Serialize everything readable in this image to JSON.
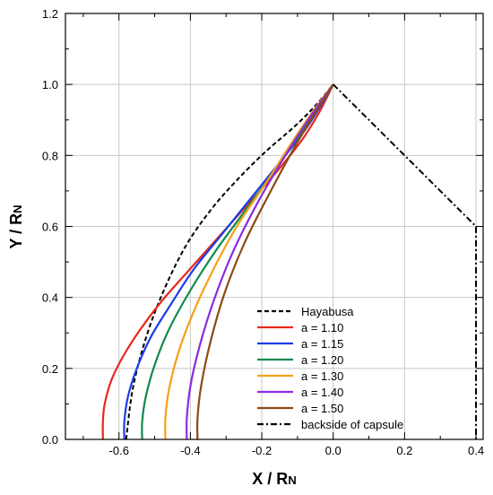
{
  "chart_data": {
    "type": "line",
    "title": "",
    "xlabel": {
      "main": "X / R",
      "sub": "N"
    },
    "ylabel": {
      "main": "Y / R",
      "sub": "N"
    },
    "xlim": [
      -0.75,
      0.42
    ],
    "ylim": [
      0.0,
      1.2
    ],
    "x_ticks": [
      -0.6,
      -0.4,
      -0.2,
      0.0,
      0.2,
      0.4
    ],
    "x_tick_labels": [
      "-0.6",
      "-0.4",
      "-0.2",
      "0.0",
      "0.2",
      "0.4"
    ],
    "y_ticks": [
      0.0,
      0.2,
      0.4,
      0.6,
      0.8,
      1.0,
      1.2
    ],
    "y_tick_labels": [
      "0.0",
      "0.2",
      "0.4",
      "0.6",
      "0.8",
      "1.0",
      "1.2"
    ],
    "grid": true,
    "legend_position": "bottom-right",
    "series": [
      {
        "name": "Hayabusa",
        "color": "#000000",
        "dash": "dashed",
        "x": [
          -0.58,
          -0.56,
          -0.52,
          -0.47,
          -0.41,
          -0.34,
          -0.27,
          -0.19,
          -0.11,
          -0.05,
          0.0
        ],
        "y": [
          0.0,
          0.15,
          0.3,
          0.43,
          0.55,
          0.65,
          0.73,
          0.81,
          0.88,
          0.94,
          1.0
        ]
      },
      {
        "name": "a = 1.10",
        "color": "#e8281e",
        "dash": "solid",
        "x": [
          -0.645,
          -0.645,
          -0.64,
          -0.62,
          -0.585,
          -0.54,
          -0.48,
          -0.41,
          -0.33,
          -0.25,
          -0.17,
          -0.09,
          -0.04,
          0.0
        ],
        "y": [
          0.0,
          0.05,
          0.1,
          0.17,
          0.24,
          0.31,
          0.39,
          0.47,
          0.56,
          0.65,
          0.74,
          0.84,
          0.92,
          1.0
        ]
      },
      {
        "name": "a = 1.15",
        "color": "#1e3be8",
        "dash": "solid",
        "x": [
          -0.585,
          -0.585,
          -0.575,
          -0.55,
          -0.51,
          -0.455,
          -0.39,
          -0.31,
          -0.23,
          -0.15,
          -0.08,
          -0.035,
          0.0
        ],
        "y": [
          0.0,
          0.05,
          0.12,
          0.2,
          0.29,
          0.38,
          0.48,
          0.58,
          0.68,
          0.78,
          0.87,
          0.94,
          1.0
        ]
      },
      {
        "name": "a = 1.20",
        "color": "#0f8a4e",
        "dash": "solid",
        "x": [
          -0.535,
          -0.535,
          -0.525,
          -0.5,
          -0.46,
          -0.4,
          -0.33,
          -0.25,
          -0.17,
          -0.1,
          -0.045,
          0.0
        ],
        "y": [
          0.0,
          0.05,
          0.12,
          0.21,
          0.31,
          0.42,
          0.53,
          0.64,
          0.75,
          0.85,
          0.93,
          1.0
        ]
      },
      {
        "name": "a = 1.30",
        "color": "#f5a01a",
        "dash": "solid",
        "x": [
          -0.47,
          -0.47,
          -0.46,
          -0.435,
          -0.395,
          -0.34,
          -0.27,
          -0.19,
          -0.12,
          -0.06,
          0.0
        ],
        "y": [
          0.0,
          0.06,
          0.14,
          0.24,
          0.35,
          0.47,
          0.6,
          0.72,
          0.83,
          0.92,
          1.0
        ]
      },
      {
        "name": "a = 1.40",
        "color": "#8a2be2",
        "dash": "solid",
        "x": [
          -0.41,
          -0.41,
          -0.4,
          -0.375,
          -0.335,
          -0.28,
          -0.21,
          -0.14,
          -0.07,
          0.0
        ],
        "y": [
          0.0,
          0.06,
          0.15,
          0.26,
          0.39,
          0.53,
          0.67,
          0.79,
          0.9,
          1.0
        ]
      },
      {
        "name": "a = 1.50",
        "color": "#8b4a14",
        "dash": "solid",
        "x": [
          -0.38,
          -0.38,
          -0.37,
          -0.345,
          -0.305,
          -0.25,
          -0.18,
          -0.11,
          -0.05,
          0.0
        ],
        "y": [
          0.0,
          0.06,
          0.15,
          0.27,
          0.41,
          0.55,
          0.69,
          0.82,
          0.92,
          1.0
        ]
      },
      {
        "name": "backside of capsule",
        "color": "#000000",
        "dash": "dashdot",
        "x": [
          0.0,
          0.4,
          0.4
        ],
        "y": [
          1.0,
          0.6,
          0.0
        ]
      }
    ]
  }
}
